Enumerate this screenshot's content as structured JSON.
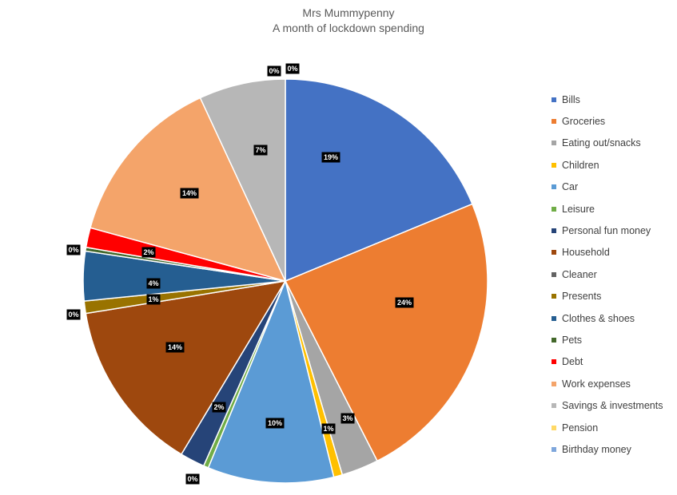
{
  "chart_data": {
    "type": "pie",
    "title": "Mrs Mummypenny",
    "subtitle": "A month of lockdown spending",
    "legend_position": "right",
    "slices": [
      {
        "name": "Bills",
        "value": 19,
        "label": "19%",
        "color": "#4472C4"
      },
      {
        "name": "Groceries",
        "value": 24,
        "label": "24%",
        "color": "#ED7D31"
      },
      {
        "name": "Eating out/snacks",
        "value": 3,
        "label": "3%",
        "color": "#A5A5A5"
      },
      {
        "name": "Children",
        "value": 0.7,
        "label": "1%",
        "color": "#FFC000"
      },
      {
        "name": "Car",
        "value": 10.2,
        "label": "10%",
        "color": "#5B9BD5"
      },
      {
        "name": "Leisure",
        "value": 0.4,
        "label": "0%",
        "color": "#70AD47"
      },
      {
        "name": "Personal fun money",
        "value": 2,
        "label": "2%",
        "color": "#264478"
      },
      {
        "name": "Household",
        "value": 14,
        "label": "14%",
        "color": "#9E480E"
      },
      {
        "name": "Cleaner",
        "value": 0,
        "label": "0%",
        "color": "#636363"
      },
      {
        "name": "Presents",
        "value": 1,
        "label": "1%",
        "color": "#997300"
      },
      {
        "name": "Clothes & shoes",
        "value": 4,
        "label": "4%",
        "color": "#255E91"
      },
      {
        "name": "Pets",
        "value": 0.3,
        "label": "0%",
        "color": "#43682B"
      },
      {
        "name": "Debt",
        "value": 1.6,
        "label": "2%",
        "color": "#FF0000"
      },
      {
        "name": "Work expenses",
        "value": 14,
        "label": "14%",
        "color": "#F4A46A"
      },
      {
        "name": "Savings & investments",
        "value": 7,
        "label": "7%",
        "color": "#B7B7B7"
      },
      {
        "name": "Pension",
        "value": 0,
        "label": "0%",
        "color": "#FFD966"
      },
      {
        "name": "Birthday money",
        "value": 0,
        "label": "0%",
        "color": "#7FA7DC"
      }
    ]
  }
}
